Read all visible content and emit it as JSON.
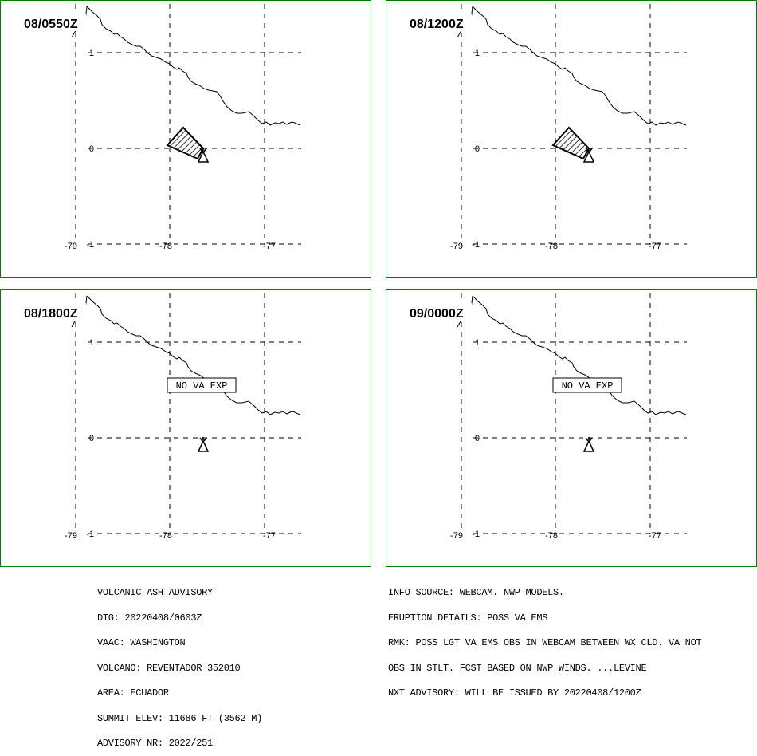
{
  "panels": [
    {
      "time": "08/0550Z",
      "ash": true,
      "no_va_text": ""
    },
    {
      "time": "08/1200Z",
      "ash": true,
      "no_va_text": ""
    },
    {
      "time": "08/1800Z",
      "ash": false,
      "no_va_text": "NO VA EXP"
    },
    {
      "time": "09/0000Z",
      "ash": false,
      "no_va_text": "NO VA EXP"
    }
  ],
  "axes": {
    "lon_labels": [
      "-79",
      "-78",
      "-77"
    ],
    "lat_labels": [
      "1",
      "0",
      "-1"
    ]
  },
  "colors": {
    "frame": "#008000",
    "lines": "#000000"
  },
  "advisory_left": [
    "VOLCANIC ASH ADVISORY",
    "DTG: 20220408/0603Z",
    "VAAC: WASHINGTON",
    "VOLCANO: REVENTADOR 352010",
    "AREA: ECUADOR",
    "SUMMIT ELEV: 11686 FT (3562 M)",
    "ADVISORY NR: 2022/251"
  ],
  "advisory_right": [
    "INFO SOURCE: WEBCAM. NWP MODELS.",
    "ERUPTION DETAILS: POSS VA EMS",
    "RMK: POSS LGT VA EMS OBS IN WEBCAM BETWEEN WX CLD. VA NOT",
    "OBS IN STLT. FCST BASED ON NWP WINDS. ...LEVINE",
    "NXT ADVISORY: WILL BE ISSUED BY 20220408/1200Z"
  ]
}
